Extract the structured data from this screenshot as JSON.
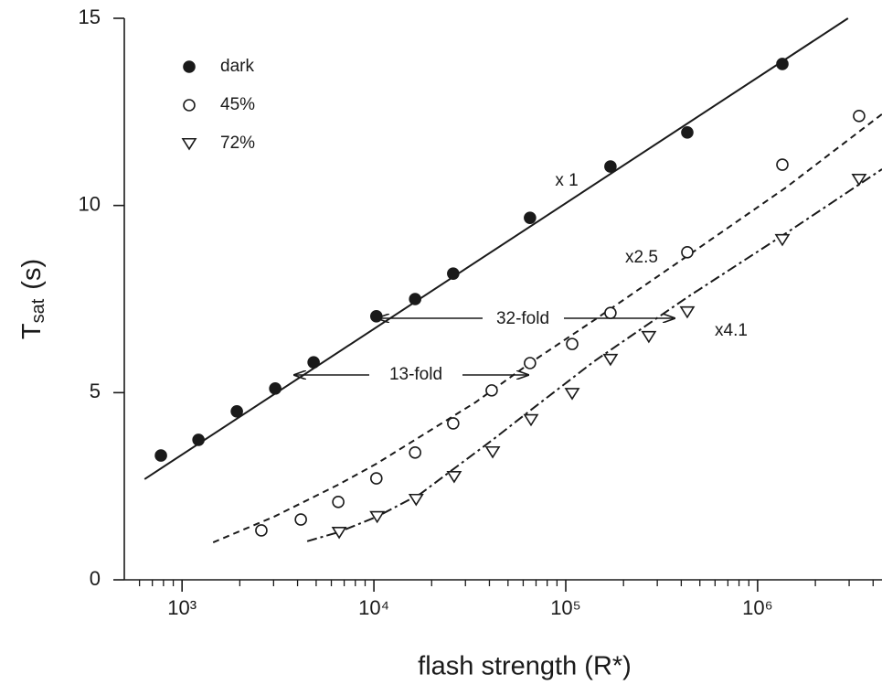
{
  "chart_data": {
    "type": "scatter",
    "xlabel": "flash strength (R*)",
    "ylabel": {
      "text": "T",
      "subscript": "sat",
      "suffix": "(s)"
    },
    "xscale": "log",
    "xlim": [
      500,
      4450000
    ],
    "ylim": [
      0,
      15
    ],
    "xticks": [
      {
        "value": 1000,
        "label": "10³"
      },
      {
        "value": 10000,
        "label": "10⁴"
      },
      {
        "value": 100000,
        "label": "10⁵"
      },
      {
        "value": 1000000,
        "label": "10⁶"
      }
    ],
    "xminorticks": [
      600,
      700,
      800,
      900,
      2000,
      3000,
      4000,
      5000,
      6000,
      7000,
      8000,
      9000,
      20000,
      30000,
      40000,
      50000,
      60000,
      70000,
      80000,
      90000,
      200000,
      300000,
      400000,
      500000,
      600000,
      700000,
      800000,
      900000,
      2000000,
      3000000,
      4000000
    ],
    "yticks": [
      0,
      5,
      10,
      15
    ],
    "legend": "top-left",
    "series": [
      {
        "name": "dark",
        "marker": "filled-circle",
        "color": "#1a1a1a",
        "x": [
          776,
          1218,
          1930,
          3060,
          4850,
          10300,
          16400,
          25900,
          65100,
          171000,
          430000,
          1346000
        ],
        "values": [
          3.32,
          3.74,
          4.5,
          5.11,
          5.81,
          7.04,
          7.5,
          8.18,
          9.67,
          11.04,
          11.95,
          13.78
        ]
      },
      {
        "name": "45%",
        "marker": "circle",
        "color": "#1a1a1a",
        "x": [
          2590,
          4160,
          6520,
          10300,
          16400,
          25900,
          41100,
          65100,
          108000,
          171000,
          430000,
          1346000,
          3380000
        ],
        "values": [
          1.32,
          1.61,
          2.08,
          2.71,
          3.4,
          4.18,
          5.06,
          5.79,
          6.3,
          7.13,
          8.75,
          11.09,
          12.39
        ]
      },
      {
        "name": "72%",
        "marker": "triangle-down",
        "color": "#1a1a1a",
        "x": [
          6590,
          10400,
          16600,
          26200,
          41600,
          65900,
          108000,
          171000,
          271000,
          430000,
          1346000,
          3380000
        ],
        "values": [
          1.27,
          1.69,
          2.15,
          2.76,
          3.42,
          4.28,
          4.98,
          5.89,
          6.5,
          7.16,
          9.09,
          10.7
        ]
      }
    ],
    "fits": [
      {
        "style": "solid",
        "x": [
          638,
          2960000
        ],
        "values": [
          2.69,
          15
        ]
      },
      {
        "style": "dashed",
        "x": [
          1452,
          3030,
          6520,
          10300,
          17500,
          33800,
          65100,
          141000,
          430000,
          1406000,
          4450000
        ],
        "values": [
          1.0,
          1.69,
          2.54,
          3.1,
          3.83,
          4.74,
          5.79,
          6.94,
          8.65,
          10.48,
          12.44
        ]
      },
      {
        "style": "dash-dot",
        "x": [
          4490,
          6520,
          10400,
          17500,
          27100,
          42100,
          65100,
          141000,
          430000,
          1406000,
          4450000
        ],
        "values": [
          1.03,
          1.27,
          1.69,
          2.3,
          3.03,
          3.76,
          4.52,
          5.84,
          7.55,
          9.26,
          10.97
        ]
      }
    ],
    "annotations": [
      "x 1",
      "x2.5",
      "x4.1",
      "32-fold",
      "13-fold"
    ]
  }
}
